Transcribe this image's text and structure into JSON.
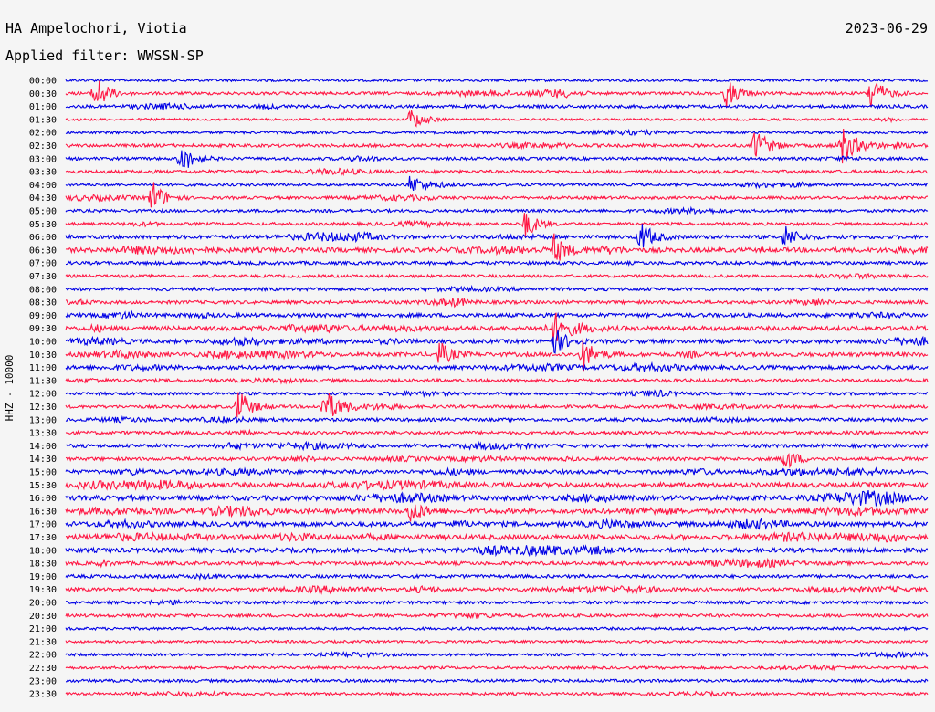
{
  "header": {
    "station": "HA Ampelochori, Viotia",
    "filter": "Applied filter: WWSSN-SP",
    "date": "2023-06-29"
  },
  "chart_data": {
    "type": "line",
    "title": "HA Ampelochori, Viotia",
    "subtitle": "Applied filter: WWSSN-SP",
    "date": "2023-06-29",
    "ylabel": "HHZ - 10000",
    "grid": false,
    "series_colors": [
      "#0000e6",
      "#ff1744"
    ],
    "rows": [
      {
        "label": "00:00",
        "activity": 0.25
      },
      {
        "label": "00:30",
        "activity": 0.35
      },
      {
        "label": "01:00",
        "activity": 0.4
      },
      {
        "label": "01:30",
        "activity": 0.2
      },
      {
        "label": "02:00",
        "activity": 0.25
      },
      {
        "label": "02:30",
        "activity": 0.4
      },
      {
        "label": "03:00",
        "activity": 0.35
      },
      {
        "label": "03:30",
        "activity": 0.45
      },
      {
        "label": "04:00",
        "activity": 0.3
      },
      {
        "label": "04:30",
        "activity": 0.35
      },
      {
        "label": "05:00",
        "activity": 0.35
      },
      {
        "label": "05:30",
        "activity": 0.35
      },
      {
        "label": "06:00",
        "activity": 0.55
      },
      {
        "label": "06:30",
        "activity": 0.75
      },
      {
        "label": "07:00",
        "activity": 0.45
      },
      {
        "label": "07:30",
        "activity": 0.35
      },
      {
        "label": "08:00",
        "activity": 0.45
      },
      {
        "label": "08:30",
        "activity": 0.45
      },
      {
        "label": "09:00",
        "activity": 0.6
      },
      {
        "label": "09:30",
        "activity": 0.7
      },
      {
        "label": "10:00",
        "activity": 0.6
      },
      {
        "label": "10:30",
        "activity": 0.65
      },
      {
        "label": "11:00",
        "activity": 0.6
      },
      {
        "label": "11:30",
        "activity": 0.45
      },
      {
        "label": "12:00",
        "activity": 0.35
      },
      {
        "label": "12:30",
        "activity": 0.4
      },
      {
        "label": "13:00",
        "activity": 0.45
      },
      {
        "label": "13:30",
        "activity": 0.45
      },
      {
        "label": "14:00",
        "activity": 0.5
      },
      {
        "label": "14:30",
        "activity": 0.45
      },
      {
        "label": "15:00",
        "activity": 0.6
      },
      {
        "label": "15:30",
        "activity": 0.8
      },
      {
        "label": "16:00",
        "activity": 0.85
      },
      {
        "label": "16:30",
        "activity": 0.8
      },
      {
        "label": "17:00",
        "activity": 0.8
      },
      {
        "label": "17:30",
        "activity": 0.85
      },
      {
        "label": "18:00",
        "activity": 0.75
      },
      {
        "label": "18:30",
        "activity": 0.5
      },
      {
        "label": "19:00",
        "activity": 0.45
      },
      {
        "label": "19:30",
        "activity": 0.45
      },
      {
        "label": "20:00",
        "activity": 0.4
      },
      {
        "label": "20:30",
        "activity": 0.4
      },
      {
        "label": "21:00",
        "activity": 0.3
      },
      {
        "label": "21:30",
        "activity": 0.25
      },
      {
        "label": "22:00",
        "activity": 0.3
      },
      {
        "label": "22:30",
        "activity": 0.3
      },
      {
        "label": "23:00",
        "activity": 0.35
      },
      {
        "label": "23:30",
        "activity": 0.3
      }
    ],
    "events": [
      {
        "row": "00:30",
        "time_min": 1,
        "amp": 1.0
      },
      {
        "row": "00:30",
        "time_min": 23,
        "amp": 0.7
      },
      {
        "row": "00:30",
        "time_min": 28,
        "amp": 1.0
      },
      {
        "row": "01:30",
        "time_min": 12,
        "amp": 0.6
      },
      {
        "row": "02:30",
        "time_min": 24,
        "amp": 0.9
      },
      {
        "row": "02:30",
        "time_min": 27,
        "amp": 1.0
      },
      {
        "row": "03:00",
        "time_min": 4,
        "amp": 0.8
      },
      {
        "row": "04:00",
        "time_min": 12,
        "amp": 0.5
      },
      {
        "row": "04:30",
        "time_min": 3,
        "amp": 0.9
      },
      {
        "row": "05:30",
        "time_min": 16,
        "amp": 0.7
      },
      {
        "row": "06:00",
        "time_min": 20,
        "amp": 0.8
      },
      {
        "row": "06:00",
        "time_min": 25,
        "amp": 0.6
      },
      {
        "row": "06:30",
        "time_min": 17,
        "amp": 0.7
      },
      {
        "row": "09:30",
        "time_min": 17,
        "amp": 0.7
      },
      {
        "row": "10:00",
        "time_min": 17,
        "amp": 0.7
      },
      {
        "row": "10:30",
        "time_min": 13,
        "amp": 0.6
      },
      {
        "row": "10:30",
        "time_min": 18,
        "amp": 0.8
      },
      {
        "row": "12:30",
        "time_min": 6,
        "amp": 0.9
      },
      {
        "row": "12:30",
        "time_min": 9,
        "amp": 0.9
      },
      {
        "row": "14:30",
        "time_min": 25,
        "amp": 0.6
      },
      {
        "row": "16:30",
        "time_min": 12,
        "amp": 0.6
      }
    ]
  }
}
